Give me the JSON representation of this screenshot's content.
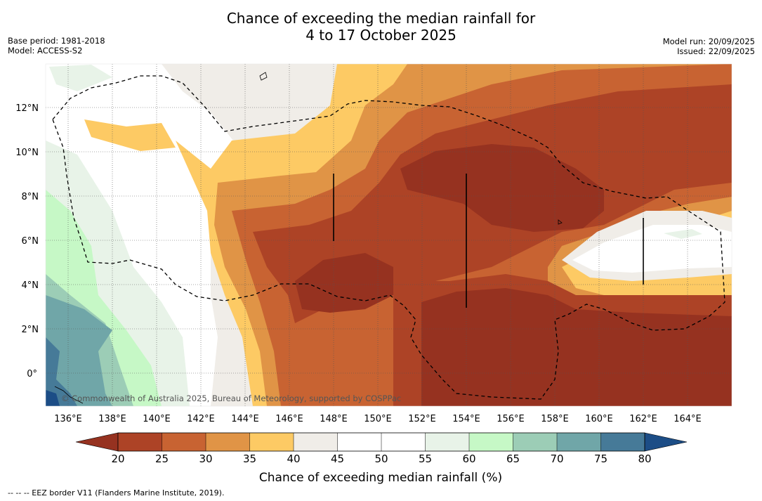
{
  "title": {
    "line1": "Chance of exceeding the median rainfall for",
    "line2": "4 to 17 October 2025"
  },
  "meta": {
    "base_period": "Base period: 1981-2018",
    "model": "Model: ACCESS-S2",
    "model_run": "Model run: 20/09/2025",
    "issued": "Issued: 22/09/2025"
  },
  "map": {
    "lon_labels": [
      "136°E",
      "138°E",
      "140°E",
      "142°E",
      "144°E",
      "146°E",
      "148°E",
      "150°E",
      "152°E",
      "154°E",
      "156°E",
      "158°E",
      "160°E",
      "162°E",
      "164°E"
    ],
    "lat_labels": [
      "12°N",
      "10°N",
      "8°N",
      "6°N",
      "4°N",
      "2°N",
      "0°"
    ],
    "copyright": "© Commonwealth of Australia 2025, Bureau of Meteorology, supported by COSPPac"
  },
  "colorbar": {
    "label": "Chance of exceeding median rainfall (%)",
    "ticks": [
      "20",
      "25",
      "30",
      "35",
      "40",
      "45",
      "50",
      "55",
      "60",
      "65",
      "70",
      "75",
      "80"
    ],
    "colors": {
      "below_20": "#963220",
      "c20_25": "#ad4326",
      "c25_30": "#c86332",
      "c30_35": "#e09446",
      "c35_40": "#fdca64",
      "c40_45": "#f0ede8",
      "c45_50": "#ffffff",
      "c50_55": "#ffffff",
      "c55_60": "#e8f3e8",
      "c60_65": "#c6f8c6",
      "c65_70": "#9ccdb6",
      "c70_75": "#70a6a8",
      "c75_80": "#467a98",
      "above_80": "#1c4d86"
    }
  },
  "footnote": "--  --  -- EEZ border V11 (Flanders Marine Institute, 2019)."
}
